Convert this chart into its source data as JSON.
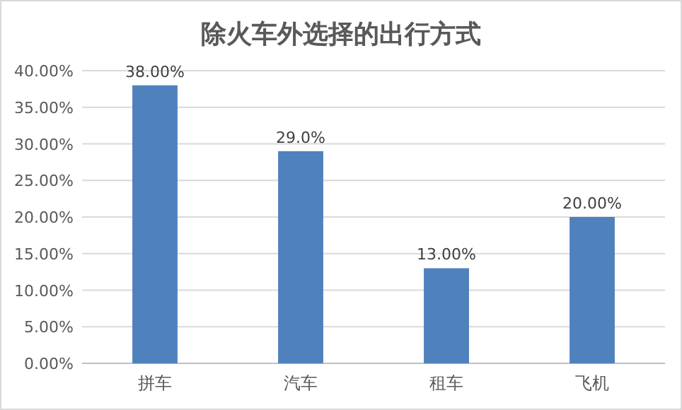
{
  "chart_data": {
    "type": "bar",
    "title": "除火车外选择的出行方式",
    "categories": [
      "拼车",
      "汽车",
      "租车",
      "飞机"
    ],
    "values": [
      38,
      29,
      13,
      20
    ],
    "value_labels": [
      "38.00%",
      "29.0%",
      "13.00%",
      "20.00%"
    ],
    "color": "#4f81bd",
    "ylim": [
      0,
      40
    ],
    "yticks": [
      {
        "value": 0,
        "label": "0.00%"
      },
      {
        "value": 5,
        "label": "5.00%"
      },
      {
        "value": 10,
        "label": "10.00%"
      },
      {
        "value": 15,
        "label": "15.00%"
      },
      {
        "value": 20,
        "label": "20.00%"
      },
      {
        "value": 25,
        "label": "25.00%"
      },
      {
        "value": 30,
        "label": "30.00%"
      },
      {
        "value": 35,
        "label": "35.00%"
      },
      {
        "value": 40,
        "label": "40.00%"
      }
    ],
    "grid": "y"
  }
}
